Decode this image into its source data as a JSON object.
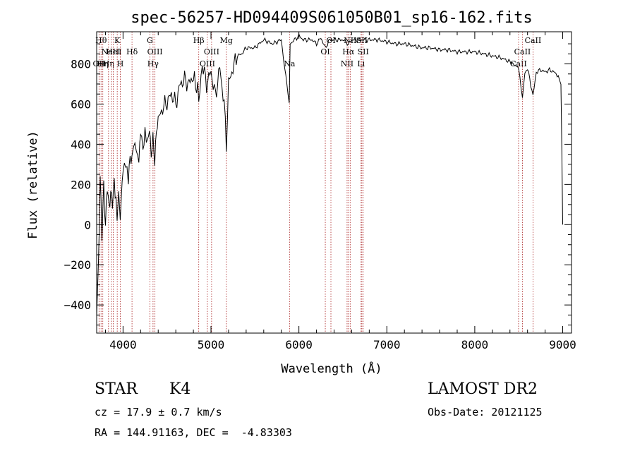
{
  "chart_data": {
    "type": "line",
    "title": "spec-56257-HD094409S061050B01_sp16-162.fits",
    "xlabel": "Wavelength (Å)",
    "ylabel": "Flux (relative)",
    "xlim": [
      3700,
      9100
    ],
    "ylim": [
      -540,
      960
    ],
    "x_ticks": [
      4000,
      5000,
      6000,
      7000,
      8000,
      9000
    ],
    "y_ticks": [
      -400,
      -200,
      0,
      200,
      400,
      600,
      800
    ],
    "series": [
      {
        "x": [
          3700,
          3720,
          3740,
          3760,
          3780,
          3800,
          3820,
          3840,
          3860,
          3880,
          3900,
          3920,
          3933,
          3950,
          3968,
          3980,
          4000,
          4030,
          4060,
          4080,
          4101,
          4120,
          4150,
          4180,
          4200,
          4226,
          4250,
          4280,
          4300,
          4320,
          4340,
          4360,
          4380,
          4400,
          4450,
          4500,
          4550,
          4600,
          4650,
          4700,
          4750,
          4800,
          4861,
          4900,
          4950,
          5000,
          5050,
          5100,
          5150,
          5175,
          5200,
          5250,
          5300,
          5350,
          5400,
          5500,
          5600,
          5700,
          5800,
          5890,
          5900,
          5950,
          6000,
          6050,
          6100,
          6150,
          6200,
          6250,
          6300,
          6350,
          6400,
          6450,
          6500,
          6563,
          6600,
          6700,
          6800,
          6900,
          7000,
          7100,
          7200,
          7300,
          7400,
          7500,
          7600,
          7700,
          7800,
          7900,
          8000,
          8100,
          8200,
          8300,
          8400,
          8498,
          8542,
          8570,
          8600,
          8662,
          8700,
          8750,
          8800,
          8850,
          8900,
          8950,
          8980,
          8990,
          9000
        ],
        "y": [
          -400,
          -200,
          250,
          -50,
          180,
          -30,
          170,
          50,
          120,
          80,
          180,
          100,
          20,
          140,
          40,
          120,
          300,
          330,
          250,
          360,
          300,
          430,
          400,
          330,
          440,
          390,
          440,
          380,
          460,
          320,
          420,
          300,
          470,
          520,
          580,
          610,
          650,
          600,
          700,
          720,
          700,
          740,
          640,
          800,
          700,
          760,
          640,
          780,
          600,
          400,
          700,
          780,
          840,
          850,
          880,
          880,
          920,
          900,
          920,
          600,
          900,
          920,
          940,
          920,
          920,
          920,
          900,
          930,
          880,
          920,
          920,
          920,
          920,
          900,
          920,
          920,
          920,
          920,
          910,
          900,
          900,
          890,
          880,
          880,
          870,
          870,
          860,
          860,
          860,
          850,
          840,
          830,
          810,
          780,
          630,
          760,
          780,
          640,
          760,
          770,
          760,
          770,
          760,
          740,
          700,
          380,
          0
        ]
      }
    ],
    "line_markers": [
      {
        "w": 3727,
        "label": "OII",
        "row": 2
      },
      {
        "w": 3750,
        "label": "Hθ",
        "row": 0
      },
      {
        "w": 3770,
        "label": "Hη",
        "row": 2
      },
      {
        "w": 3835,
        "label": "Hη",
        "row": 2
      },
      {
        "w": 3869,
        "label": "NeIII",
        "row": 1
      },
      {
        "w": 3889,
        "label": "HeI",
        "row": 1
      },
      {
        "w": 3934,
        "label": "K",
        "row": 0
      },
      {
        "w": 3969,
        "label": "H",
        "row": 2
      },
      {
        "w": 4102,
        "label": "Hδ",
        "row": 1
      },
      {
        "w": 4305,
        "label": "G",
        "row": 0
      },
      {
        "w": 4341,
        "label": "Hγ",
        "row": 2
      },
      {
        "w": 4363,
        "label": "OIII",
        "row": 1
      },
      {
        "w": 4861,
        "label": "Hβ",
        "row": 0
      },
      {
        "w": 4959,
        "label": "OIII",
        "row": 2
      },
      {
        "w": 5007,
        "label": "OIII",
        "row": 1
      },
      {
        "w": 5175,
        "label": "Mg",
        "row": 0
      },
      {
        "w": 5893,
        "label": "Na",
        "row": 2
      },
      {
        "w": 6300,
        "label": "OI",
        "row": 1
      },
      {
        "w": 6364,
        "label": "OI",
        "row": 0
      },
      {
        "w": 6548,
        "label": "NII",
        "row": 2
      },
      {
        "w": 6563,
        "label": "Hα",
        "row": 1
      },
      {
        "w": 6583,
        "label": "NII",
        "row": 0
      },
      {
        "w": 6707,
        "label": "Li",
        "row": 2
      },
      {
        "w": 6716,
        "label": "SII",
        "row": 0
      },
      {
        "w": 6731,
        "label": "SII",
        "row": 1
      },
      {
        "w": 8498,
        "label": "CaII",
        "row": 2
      },
      {
        "w": 8542,
        "label": "CaII",
        "row": 1
      },
      {
        "w": 8662,
        "label": "CaII",
        "row": 0
      }
    ],
    "grid": false,
    "legend": "none"
  },
  "info": {
    "class": "STAR",
    "subclass": "K4",
    "survey": "LAMOST DR2",
    "cz": "cz = 17.9 ± 0.7 km/s",
    "obs_date": "Obs-Date: 20121125",
    "radec": "RA = 144.91163, DEC =  -4.83303"
  },
  "colors": {
    "spectrum": "#000000",
    "line_markers": "#aa2222",
    "background": "#ffffff"
  }
}
